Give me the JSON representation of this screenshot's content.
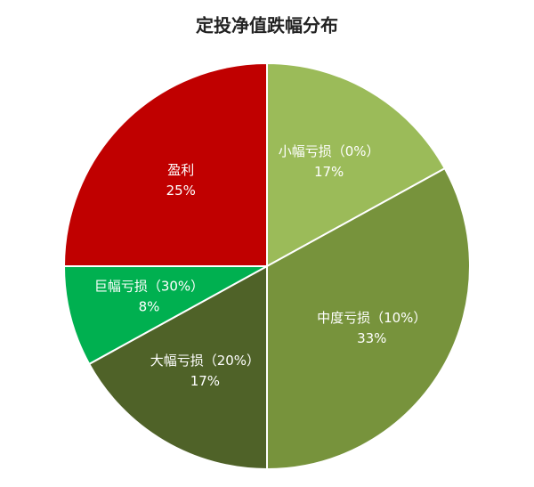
{
  "chart_data": {
    "type": "pie",
    "title": "定投净值跌幅分布",
    "categories": [
      "小幅亏损（0%）",
      "中度亏损（10%）",
      "大幅亏损（20%）",
      "巨幅亏损（30%）",
      "盈利"
    ],
    "values": [
      17,
      33,
      17,
      8,
      25
    ],
    "value_labels": [
      "17%",
      "33%",
      "17%",
      "8%",
      "25%"
    ],
    "colors": [
      "#9bbb59",
      "#77933c",
      "#4f6228",
      "#00b050",
      "#c00000"
    ]
  }
}
